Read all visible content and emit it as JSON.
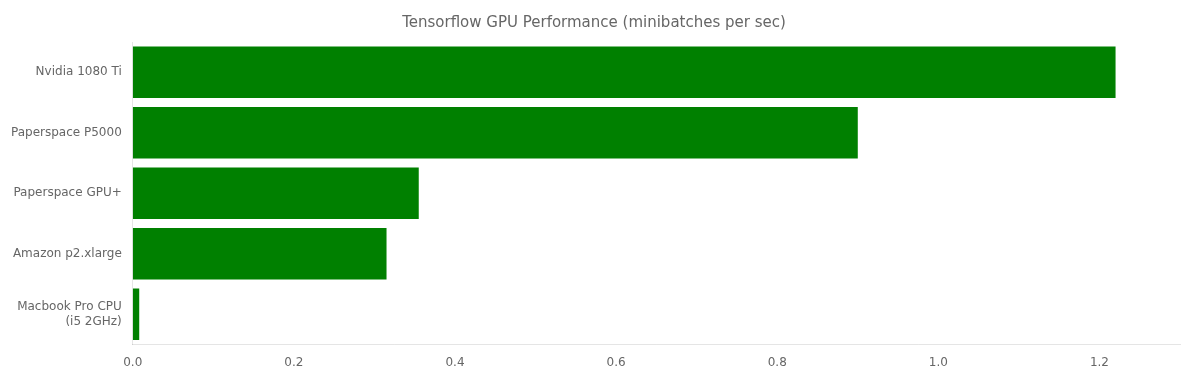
{
  "chart_data": {
    "type": "bar",
    "orientation": "horizontal",
    "title": "Tensorflow GPU Performance (minibatches per sec)",
    "categories": [
      "Nvidia 1080 Ti",
      "Paperspace P5000",
      "Paperspace GPU+",
      "Amazon p2.xlarge",
      "Macbook Pro CPU\n(i5 2GHz)"
    ],
    "values": [
      1.22,
      0.9,
      0.355,
      0.315,
      0.008
    ],
    "color": "#008000",
    "xlim": [
      0,
      1.3
    ],
    "xticks": [
      {
        "value": 0,
        "label": "0.0"
      },
      0.2,
      0.4,
      0.6,
      0.8,
      {
        "value": 1,
        "label": "1.0"
      },
      1.2
    ],
    "grid": false
  }
}
